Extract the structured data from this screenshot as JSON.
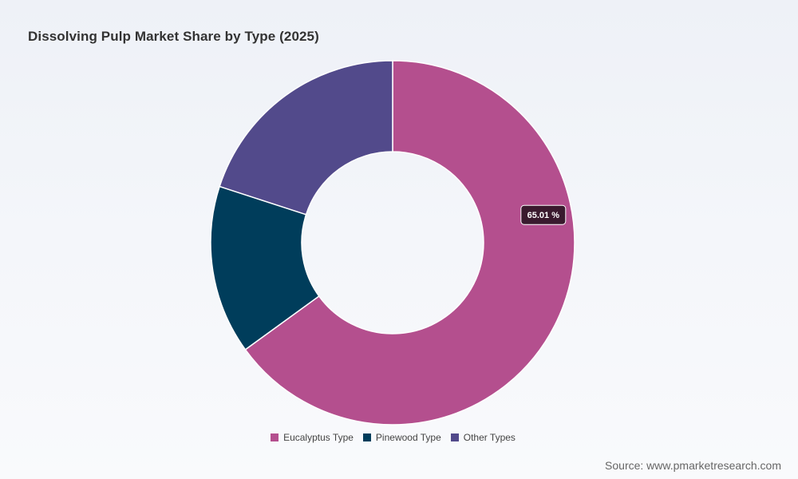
{
  "chart_data": {
    "type": "pie",
    "variant": "donut",
    "title": "Dissolving Pulp Market Share by Type (2025)",
    "unit": "%",
    "categories": [
      "Eucalyptus Type",
      "Pinewood Type",
      "Other Types"
    ],
    "values": [
      65.01,
      14.99,
      20.0
    ],
    "colors": [
      "#b44f8e",
      "#003d5b",
      "#524a8b"
    ],
    "tooltip": {
      "category": "Eucalyptus Type",
      "text": "65.01 %"
    },
    "legend": {
      "position": "bottom-center"
    }
  },
  "source": "Source: www.pmarketresearch.com"
}
